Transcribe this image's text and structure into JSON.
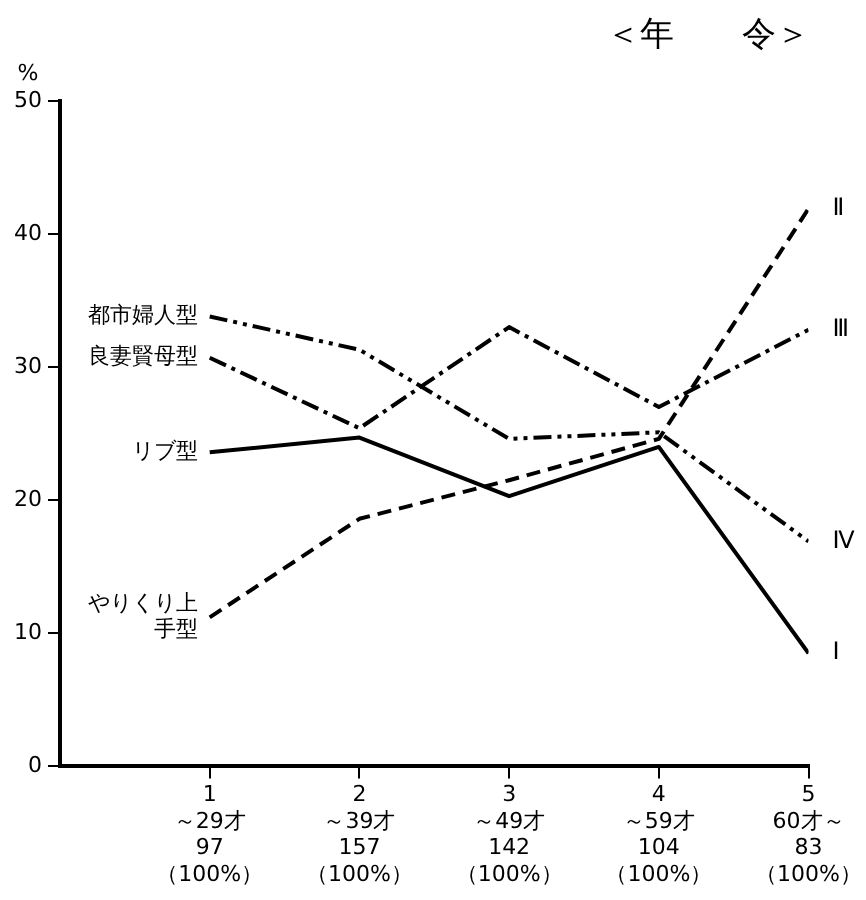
{
  "chart_data": {
    "type": "line",
    "title": "＜年　　令＞",
    "ylabel": "%",
    "categories": [
      "1\n～29才\n97\n（100%）",
      "2\n～39才\n157\n（100%）",
      "3\n～49才\n142\n（100%）",
      "4\n～59才\n104\n（100%）",
      "5\n60才～\n83\n（100%）"
    ],
    "ylim": [
      0,
      50
    ],
    "yticks": [
      0,
      10,
      20,
      30,
      40,
      50
    ],
    "series": [
      {
        "name": "都市婦人型",
        "color": "#000000",
        "line_style": "dashdotdot",
        "values": [
          33.8,
          31.3,
          24.6,
          25.1,
          16.9
        ]
      },
      {
        "name": "良妻賢母型",
        "color": "#000000",
        "line_style": "dashdot",
        "values": [
          30.7,
          25.4,
          33.0,
          27.0,
          32.8
        ]
      },
      {
        "name": "リブ型",
        "color": "#000000",
        "line_style": "solid",
        "values": [
          23.6,
          24.7,
          20.3,
          24.0,
          8.5
        ]
      },
      {
        "name": "やりくり上手型",
        "color": "#000000",
        "line_style": "dashed",
        "values": [
          11.2,
          18.6,
          21.5,
          24.6,
          41.9
        ]
      }
    ],
    "annotations": [
      "Ⅳ",
      "Ⅲ",
      "Ⅰ",
      "Ⅱ"
    ],
    "grid": false,
    "legend": false,
    "marker": "none"
  }
}
